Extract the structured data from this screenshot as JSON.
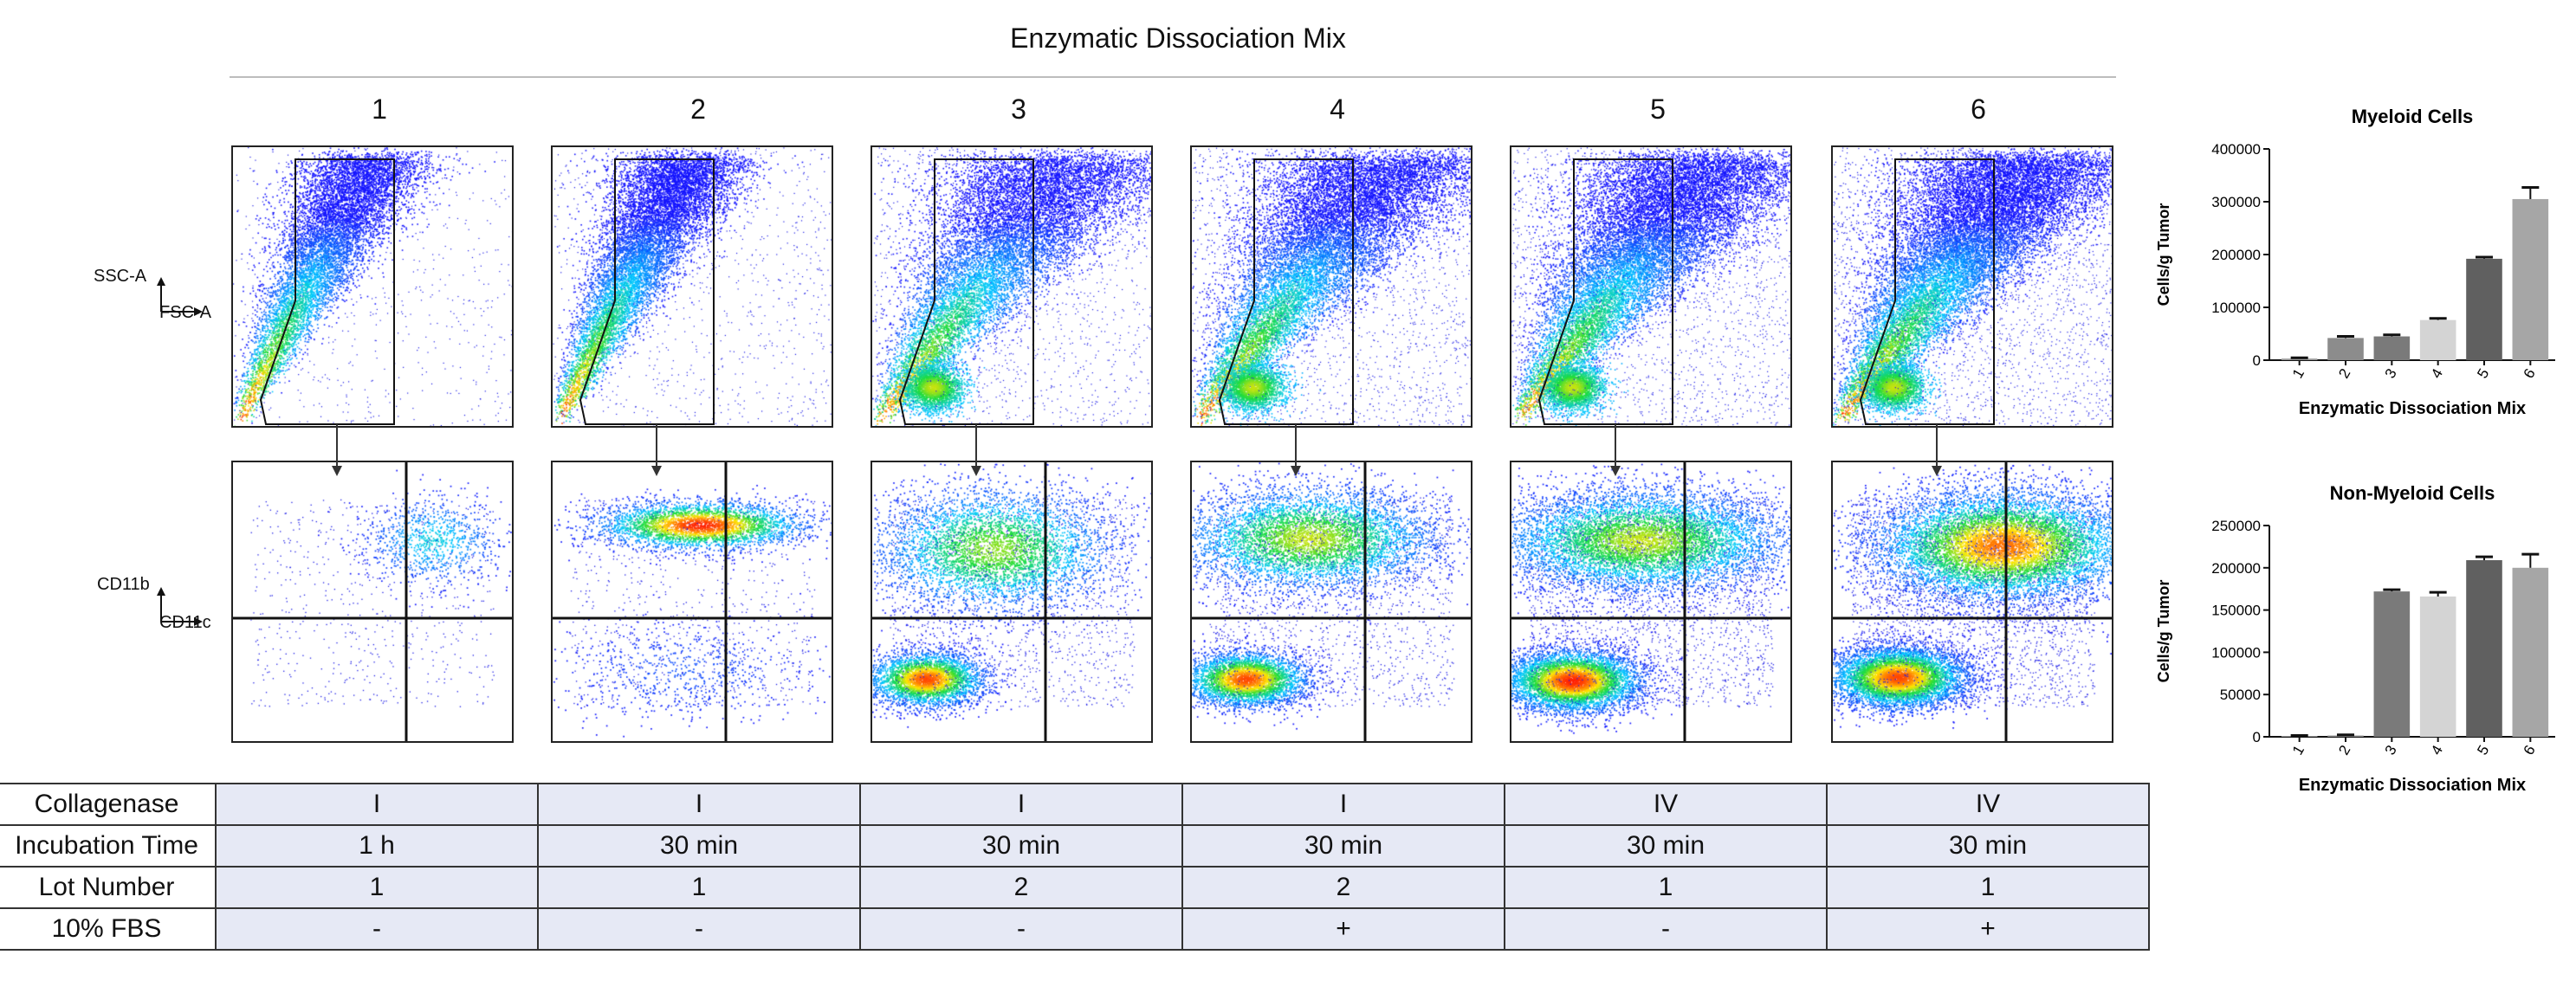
{
  "figure_title": "Enzymatic Dissociation Mix",
  "columns": [
    "1",
    "2",
    "3",
    "4",
    "5",
    "6"
  ],
  "flow_axes": {
    "top_y": "SSC-A",
    "top_x": "FSC-A",
    "bottom_y": "CD11b",
    "bottom_x": "CD11c"
  },
  "table": {
    "rows": [
      {
        "label": "Collagenase",
        "values": [
          "I",
          "I",
          "I",
          "I",
          "IV",
          "IV"
        ]
      },
      {
        "label": "Incubation Time",
        "values": [
          "1 h",
          "30 min",
          "30 min",
          "30 min",
          "30 min",
          "30 min"
        ]
      },
      {
        "label": "Lot  Number",
        "values": [
          "1",
          "1",
          "2",
          "2",
          "1",
          "1"
        ]
      },
      {
        "label": "10% FBS",
        "values": [
          "-",
          "-",
          "-",
          "+",
          "-",
          "+"
        ]
      }
    ]
  },
  "colors": {
    "density_low": "#1a1aff",
    "density_mid": "#00c8ff",
    "density_high": "#ff2a00",
    "bar_palette": [
      "#9a9a9a",
      "#8c8c8c",
      "#7a7a7a",
      "#d4d4d4",
      "#606060",
      "#a6a6a6"
    ]
  },
  "chart_data": [
    {
      "type": "bar",
      "title": "Myeloid Cells",
      "categories": [
        "1",
        "2",
        "3",
        "4",
        "5",
        "6"
      ],
      "values": [
        3000,
        42000,
        45000,
        76000,
        192000,
        305000
      ],
      "errors": [
        1500,
        3000,
        3000,
        3000,
        3000,
        22000
      ],
      "ylim": [
        0,
        400000
      ],
      "yticks": [
        "0",
        "100000",
        "200000",
        "300000",
        "400000"
      ],
      "xlabel": "Enzymatic Dissociation Mix",
      "ylabel": "Cells/g Tumor"
    },
    {
      "type": "bar",
      "title": "Non-Myeloid Cells",
      "categories": [
        "1",
        "2",
        "3",
        "4",
        "5",
        "6"
      ],
      "values": [
        1000,
        1500,
        172000,
        166000,
        209000,
        200000
      ],
      "errors": [
        500,
        800,
        2000,
        5000,
        4000,
        16000
      ],
      "ylim": [
        0,
        250000
      ],
      "yticks": [
        "0",
        "50000",
        "100000",
        "150000",
        "200000",
        "250000"
      ],
      "xlabel": "Enzymatic  Dissociation Mix",
      "ylabel": "Cells/g Tumor"
    }
  ]
}
